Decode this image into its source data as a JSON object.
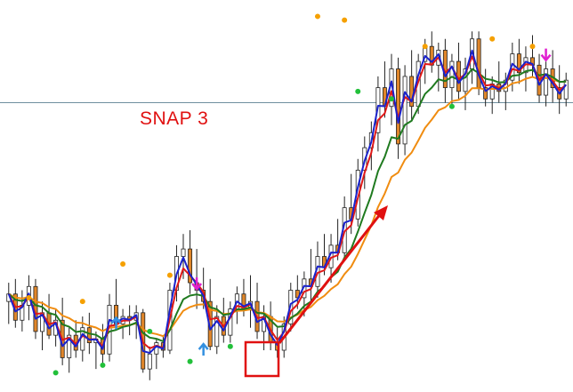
{
  "colors": {
    "background": "#ffffff",
    "bull_candle_body": "#ffffff",
    "bear_candle_body": "#e0862a",
    "candle_outline": "#222222",
    "ma_blue": "#1a22cc",
    "ma_red": "#e01818",
    "ma_green": "#1f7a1f",
    "ma_orange": "#f08c10",
    "dot_orange": "#f5a000",
    "dot_green": "#22c03a",
    "arrow_up": "#3390e0",
    "arrow_down": "#e020d0",
    "annotation_red": "#e01010",
    "hline": "#6f8f9f"
  },
  "annotation": {
    "label": "SNAP 3"
  },
  "chart_data": {
    "type": "candlestick",
    "title": "",
    "xlabel": "",
    "ylabel": "",
    "ylim": [
      0,
      100
    ],
    "grid": false,
    "candles": [
      {
        "o": 22,
        "h": 27,
        "l": 16,
        "c": 24
      },
      {
        "o": 24,
        "h": 28,
        "l": 15,
        "c": 17
      },
      {
        "o": 17,
        "h": 25,
        "l": 14,
        "c": 21
      },
      {
        "o": 21,
        "h": 29,
        "l": 17,
        "c": 26
      },
      {
        "o": 26,
        "h": 28,
        "l": 12,
        "c": 14
      },
      {
        "o": 14,
        "h": 22,
        "l": 9,
        "c": 19
      },
      {
        "o": 19,
        "h": 24,
        "l": 12,
        "c": 13
      },
      {
        "o": 13,
        "h": 20,
        "l": 10,
        "c": 17
      },
      {
        "o": 17,
        "h": 23,
        "l": 5,
        "c": 7
      },
      {
        "o": 7,
        "h": 15,
        "l": 3,
        "c": 13
      },
      {
        "o": 13,
        "h": 17,
        "l": 7,
        "c": 9
      },
      {
        "o": 9,
        "h": 18,
        "l": 6,
        "c": 15
      },
      {
        "o": 15,
        "h": 19,
        "l": 8,
        "c": 11
      },
      {
        "o": 11,
        "h": 14,
        "l": 4,
        "c": 12
      },
      {
        "o": 12,
        "h": 16,
        "l": 5,
        "c": 8
      },
      {
        "o": 8,
        "h": 24,
        "l": 6,
        "c": 21
      },
      {
        "o": 21,
        "h": 28,
        "l": 15,
        "c": 16
      },
      {
        "o": 16,
        "h": 20,
        "l": 12,
        "c": 18
      },
      {
        "o": 18,
        "h": 21,
        "l": 13,
        "c": 17
      },
      {
        "o": 17,
        "h": 21,
        "l": 12,
        "c": 19
      },
      {
        "o": 19,
        "h": 20,
        "l": 3,
        "c": 4
      },
      {
        "o": 4,
        "h": 10,
        "l": 1,
        "c": 8
      },
      {
        "o": 8,
        "h": 12,
        "l": 4,
        "c": 11
      },
      {
        "o": 11,
        "h": 13,
        "l": 7,
        "c": 9
      },
      {
        "o": 9,
        "h": 27,
        "l": 8,
        "c": 25
      },
      {
        "o": 25,
        "h": 37,
        "l": 22,
        "c": 34
      },
      {
        "o": 34,
        "h": 40,
        "l": 28,
        "c": 36
      },
      {
        "o": 36,
        "h": 41,
        "l": 24,
        "c": 27
      },
      {
        "o": 27,
        "h": 36,
        "l": 20,
        "c": 25
      },
      {
        "o": 25,
        "h": 31,
        "l": 20,
        "c": 22
      },
      {
        "o": 22,
        "h": 28,
        "l": 9,
        "c": 10
      },
      {
        "o": 10,
        "h": 21,
        "l": 8,
        "c": 18
      },
      {
        "o": 18,
        "h": 23,
        "l": 11,
        "c": 13
      },
      {
        "o": 13,
        "h": 22,
        "l": 11,
        "c": 20
      },
      {
        "o": 20,
        "h": 26,
        "l": 16,
        "c": 24
      },
      {
        "o": 24,
        "h": 28,
        "l": 18,
        "c": 20
      },
      {
        "o": 20,
        "h": 29,
        "l": 15,
        "c": 22
      },
      {
        "o": 22,
        "h": 27,
        "l": 12,
        "c": 14
      },
      {
        "o": 14,
        "h": 21,
        "l": 9,
        "c": 18
      },
      {
        "o": 18,
        "h": 22,
        "l": 9,
        "c": 11
      },
      {
        "o": 11,
        "h": 15,
        "l": 7,
        "c": 9
      },
      {
        "o": 9,
        "h": 18,
        "l": 7,
        "c": 16
      },
      {
        "o": 16,
        "h": 27,
        "l": 14,
        "c": 25
      },
      {
        "o": 25,
        "h": 29,
        "l": 20,
        "c": 23
      },
      {
        "o": 23,
        "h": 30,
        "l": 18,
        "c": 28
      },
      {
        "o": 28,
        "h": 36,
        "l": 22,
        "c": 26
      },
      {
        "o": 26,
        "h": 38,
        "l": 23,
        "c": 34
      },
      {
        "o": 34,
        "h": 40,
        "l": 29,
        "c": 31
      },
      {
        "o": 31,
        "h": 40,
        "l": 27,
        "c": 37
      },
      {
        "o": 37,
        "h": 44,
        "l": 33,
        "c": 35
      },
      {
        "o": 35,
        "h": 50,
        "l": 33,
        "c": 47
      },
      {
        "o": 47,
        "h": 56,
        "l": 40,
        "c": 44
      },
      {
        "o": 44,
        "h": 60,
        "l": 42,
        "c": 57
      },
      {
        "o": 57,
        "h": 66,
        "l": 52,
        "c": 63
      },
      {
        "o": 63,
        "h": 70,
        "l": 57,
        "c": 67
      },
      {
        "o": 67,
        "h": 82,
        "l": 62,
        "c": 79
      },
      {
        "o": 79,
        "h": 86,
        "l": 71,
        "c": 74
      },
      {
        "o": 74,
        "h": 88,
        "l": 69,
        "c": 84
      },
      {
        "o": 84,
        "h": 87,
        "l": 60,
        "c": 64
      },
      {
        "o": 64,
        "h": 85,
        "l": 61,
        "c": 82
      },
      {
        "o": 82,
        "h": 89,
        "l": 70,
        "c": 74
      },
      {
        "o": 74,
        "h": 88,
        "l": 72,
        "c": 86
      },
      {
        "o": 86,
        "h": 92,
        "l": 80,
        "c": 90
      },
      {
        "o": 90,
        "h": 94,
        "l": 83,
        "c": 85
      },
      {
        "o": 85,
        "h": 91,
        "l": 78,
        "c": 89
      },
      {
        "o": 89,
        "h": 92,
        "l": 75,
        "c": 79
      },
      {
        "o": 79,
        "h": 88,
        "l": 74,
        "c": 86
      },
      {
        "o": 86,
        "h": 91,
        "l": 76,
        "c": 78
      },
      {
        "o": 78,
        "h": 87,
        "l": 73,
        "c": 84
      },
      {
        "o": 84,
        "h": 94,
        "l": 80,
        "c": 92
      },
      {
        "o": 92,
        "h": 94,
        "l": 77,
        "c": 79
      },
      {
        "o": 79,
        "h": 84,
        "l": 74,
        "c": 76
      },
      {
        "o": 76,
        "h": 82,
        "l": 72,
        "c": 80
      },
      {
        "o": 80,
        "h": 86,
        "l": 75,
        "c": 78
      },
      {
        "o": 78,
        "h": 83,
        "l": 73,
        "c": 81
      },
      {
        "o": 81,
        "h": 91,
        "l": 78,
        "c": 88
      },
      {
        "o": 88,
        "h": 92,
        "l": 80,
        "c": 83
      },
      {
        "o": 83,
        "h": 90,
        "l": 78,
        "c": 87
      },
      {
        "o": 87,
        "h": 93,
        "l": 82,
        "c": 85
      },
      {
        "o": 85,
        "h": 88,
        "l": 75,
        "c": 77
      },
      {
        "o": 77,
        "h": 86,
        "l": 74,
        "c": 84
      },
      {
        "o": 84,
        "h": 89,
        "l": 75,
        "c": 79
      },
      {
        "o": 79,
        "h": 85,
        "l": 72,
        "c": 76
      },
      {
        "o": 76,
        "h": 83,
        "l": 74,
        "c": 81
      }
    ],
    "ma_periods": {
      "ma_blue": 2,
      "ma_red": 3,
      "ma_green": 8,
      "ma_orange": 14
    },
    "hline_value": 75,
    "signal_dots": [
      {
        "i": 3,
        "color": "dot_orange",
        "value": 23
      },
      {
        "i": 7,
        "color": "dot_green",
        "value": 3
      },
      {
        "i": 11,
        "color": "dot_orange",
        "value": 22
      },
      {
        "i": 14,
        "color": "dot_green",
        "value": 5
      },
      {
        "i": 17,
        "color": "dot_orange",
        "value": 32
      },
      {
        "i": 21,
        "color": "dot_green",
        "value": 14
      },
      {
        "i": 24,
        "color": "dot_orange",
        "value": 29
      },
      {
        "i": 27,
        "color": "dot_green",
        "value": 6
      },
      {
        "i": 33,
        "color": "dot_green",
        "value": 10
      },
      {
        "i": 46,
        "color": "dot_orange",
        "value": 98
      },
      {
        "i": 50,
        "color": "dot_orange",
        "value": 97
      },
      {
        "i": 52,
        "color": "dot_green",
        "value": 78
      },
      {
        "i": 57,
        "color": "dot_green",
        "value": 76
      },
      {
        "i": 62,
        "color": "dot_orange",
        "value": 90
      },
      {
        "i": 66,
        "color": "dot_green",
        "value": 74
      },
      {
        "i": 72,
        "color": "dot_orange",
        "value": 92
      },
      {
        "i": 78,
        "color": "dot_orange",
        "value": 90
      }
    ],
    "signal_arrows": [
      {
        "i": 16,
        "dir": "up",
        "value": 16
      },
      {
        "i": 28,
        "dir": "down",
        "value": 27
      },
      {
        "i": 29,
        "dir": "up",
        "value": 9
      },
      {
        "i": 80,
        "dir": "down",
        "value": 88
      }
    ]
  }
}
